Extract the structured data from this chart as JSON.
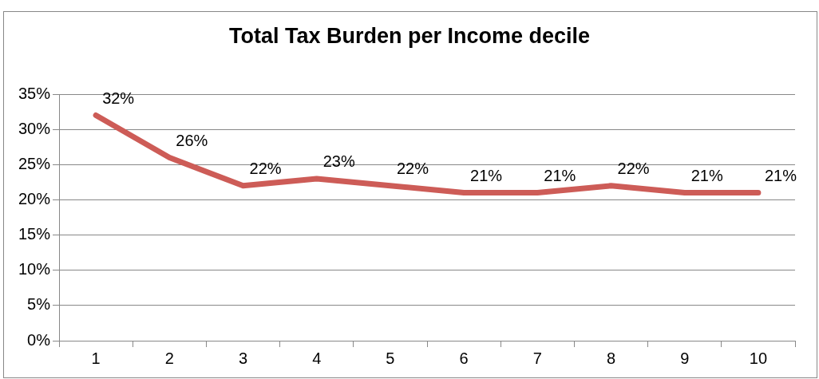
{
  "chart_data": {
    "type": "line",
    "title": "Total Tax Burden per Income decile",
    "categories": [
      "1",
      "2",
      "3",
      "4",
      "5",
      "6",
      "7",
      "8",
      "9",
      "10"
    ],
    "series": [
      {
        "color": "#cd5c57",
        "values": [
          32,
          26,
          22,
          23,
          22,
          21,
          21,
          22,
          21,
          21
        ],
        "value_labels": [
          "32%",
          "26%",
          "22%",
          "23%",
          "22%",
          "21%",
          "21%",
          "22%",
          "21%",
          "21%"
        ]
      }
    ],
    "ylim": [
      0,
      35
    ],
    "yticks": [
      {
        "value": 0,
        "label": "0%"
      },
      {
        "value": 5,
        "label": "5%"
      },
      {
        "value": 10,
        "label": "10%"
      },
      {
        "value": 15,
        "label": "15%"
      },
      {
        "value": 20,
        "label": "20%"
      },
      {
        "value": 25,
        "label": "25%"
      },
      {
        "value": 30,
        "label": "30%"
      },
      {
        "value": 35,
        "label": "35%"
      }
    ],
    "grid": "y",
    "legend": false,
    "marker": "none",
    "line_style": "solid"
  }
}
